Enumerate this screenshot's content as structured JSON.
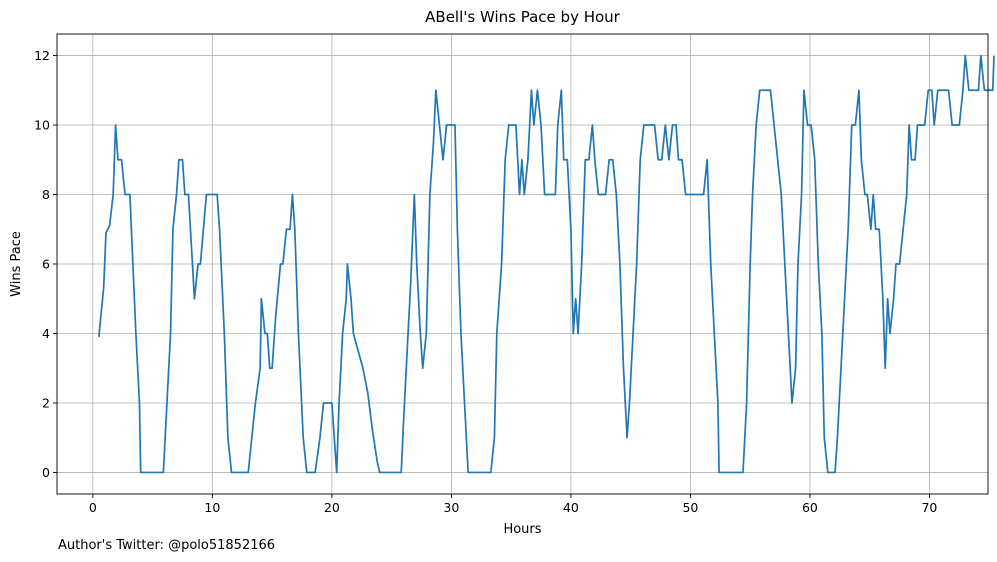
{
  "chart_data": {
    "type": "line",
    "title": "ABell's Wins Pace by Hour",
    "xlabel": "Hours",
    "ylabel": "Wins Pace",
    "xlim": [
      -3.0,
      74.9
    ],
    "ylim": [
      -0.62,
      12.62
    ],
    "xticks": [
      0,
      10,
      20,
      30,
      40,
      50,
      60,
      70
    ],
    "yticks": [
      0,
      2,
      4,
      6,
      8,
      10,
      12
    ],
    "grid": true,
    "series": [
      {
        "color": "#1f77b4",
        "points": [
          [
            0.5,
            3.9
          ],
          [
            0.9,
            5.3
          ],
          [
            1.1,
            6.9
          ],
          [
            1.4,
            7.1
          ],
          [
            1.6,
            7.7
          ],
          [
            1.7,
            8.0
          ],
          [
            1.8,
            9.0
          ],
          [
            1.9,
            10.0
          ],
          [
            2.1,
            9.0
          ],
          [
            2.4,
            9.0
          ],
          [
            2.6,
            8.3
          ],
          [
            2.7,
            8.0
          ],
          [
            3.0,
            8.0
          ],
          [
            3.1,
            8.0
          ],
          [
            3.6,
            4.0
          ],
          [
            3.9,
            2.0
          ],
          [
            4.0,
            0.0
          ],
          [
            4.5,
            0.0
          ],
          [
            5.0,
            0.0
          ],
          [
            5.5,
            0.0
          ],
          [
            5.9,
            0.0
          ],
          [
            6.2,
            2.0
          ],
          [
            6.5,
            4.0
          ],
          [
            6.7,
            7.0
          ],
          [
            7.0,
            8.0
          ],
          [
            7.2,
            9.0
          ],
          [
            7.5,
            9.0
          ],
          [
            7.7,
            8.0
          ],
          [
            8.0,
            8.0
          ],
          [
            8.5,
            5.0
          ],
          [
            8.8,
            6.0
          ],
          [
            9.0,
            6.0
          ],
          [
            9.5,
            8.0
          ],
          [
            9.9,
            8.0
          ],
          [
            10.2,
            8.0
          ],
          [
            10.4,
            8.0
          ],
          [
            10.6,
            7.0
          ],
          [
            11.0,
            4.0
          ],
          [
            11.3,
            1.0
          ],
          [
            11.6,
            0.0
          ],
          [
            12.0,
            0.0
          ],
          [
            12.5,
            0.0
          ],
          [
            13.0,
            0.0
          ],
          [
            13.3,
            1.0
          ],
          [
            13.6,
            2.0
          ],
          [
            14.0,
            3.0
          ],
          [
            14.1,
            5.0
          ],
          [
            14.4,
            4.0
          ],
          [
            14.6,
            4.0
          ],
          [
            14.8,
            3.0
          ],
          [
            15.0,
            3.0
          ],
          [
            15.3,
            4.5
          ],
          [
            15.7,
            6.0
          ],
          [
            15.9,
            6.0
          ],
          [
            16.2,
            7.0
          ],
          [
            16.5,
            7.0
          ],
          [
            16.7,
            8.0
          ],
          [
            16.9,
            7.0
          ],
          [
            17.2,
            4.0
          ],
          [
            17.6,
            1.0
          ],
          [
            17.9,
            0.0
          ],
          [
            18.3,
            0.0
          ],
          [
            18.6,
            0.0
          ],
          [
            19.0,
            1.0
          ],
          [
            19.3,
            2.0
          ],
          [
            19.7,
            2.0
          ],
          [
            20.0,
            2.0
          ],
          [
            20.4,
            0.0
          ],
          [
            20.6,
            2.0
          ],
          [
            20.9,
            4.0
          ],
          [
            21.2,
            5.0
          ],
          [
            21.3,
            6.0
          ],
          [
            21.6,
            5.0
          ],
          [
            21.8,
            4.0
          ],
          [
            22.2,
            3.5
          ],
          [
            22.6,
            3.0
          ],
          [
            23.0,
            2.3
          ],
          [
            23.4,
            1.2
          ],
          [
            23.8,
            0.3
          ],
          [
            24.0,
            0.0
          ],
          [
            24.5,
            0.0
          ],
          [
            25.0,
            0.0
          ],
          [
            25.5,
            0.0
          ],
          [
            25.8,
            0.0
          ],
          [
            26.0,
            1.5
          ],
          [
            26.3,
            3.5
          ],
          [
            26.6,
            5.5
          ],
          [
            26.9,
            8.0
          ],
          [
            27.1,
            6.0
          ],
          [
            27.4,
            4.0
          ],
          [
            27.6,
            3.0
          ],
          [
            27.9,
            4.0
          ],
          [
            28.2,
            8.0
          ],
          [
            28.5,
            9.5
          ],
          [
            28.7,
            11.0
          ],
          [
            29.0,
            10.0
          ],
          [
            29.3,
            9.0
          ],
          [
            29.6,
            10.0
          ],
          [
            29.9,
            10.0
          ],
          [
            30.3,
            10.0
          ],
          [
            30.5,
            7.0
          ],
          [
            30.8,
            4.0
          ],
          [
            31.1,
            2.0
          ],
          [
            31.4,
            0.0
          ],
          [
            32.0,
            0.0
          ],
          [
            33.0,
            0.0
          ],
          [
            33.3,
            0.0
          ],
          [
            33.6,
            1.0
          ],
          [
            33.8,
            4.0
          ],
          [
            34.2,
            6.0
          ],
          [
            34.5,
            9.0
          ],
          [
            34.8,
            10.0
          ],
          [
            35.1,
            10.0
          ],
          [
            35.4,
            10.0
          ],
          [
            35.7,
            8.0
          ],
          [
            35.9,
            9.0
          ],
          [
            36.1,
            8.0
          ],
          [
            36.4,
            9.0
          ],
          [
            36.7,
            11.0
          ],
          [
            36.9,
            10.0
          ],
          [
            37.2,
            11.0
          ],
          [
            37.5,
            10.0
          ],
          [
            37.8,
            8.0
          ],
          [
            38.1,
            8.0
          ],
          [
            38.4,
            8.0
          ],
          [
            38.7,
            8.0
          ],
          [
            38.9,
            10.0
          ],
          [
            39.2,
            11.0
          ],
          [
            39.4,
            9.0
          ],
          [
            39.7,
            9.0
          ],
          [
            40.0,
            7.0
          ],
          [
            40.2,
            4.0
          ],
          [
            40.4,
            5.0
          ],
          [
            40.6,
            4.0
          ],
          [
            40.9,
            6.0
          ],
          [
            41.2,
            9.0
          ],
          [
            41.5,
            9.0
          ],
          [
            41.8,
            10.0
          ],
          [
            42.0,
            9.0
          ],
          [
            42.3,
            8.0
          ],
          [
            42.6,
            8.0
          ],
          [
            42.9,
            8.0
          ],
          [
            43.2,
            9.0
          ],
          [
            43.5,
            9.0
          ],
          [
            43.8,
            8.0
          ],
          [
            44.1,
            6.0
          ],
          [
            44.4,
            3.0
          ],
          [
            44.7,
            1.0
          ],
          [
            44.9,
            2.0
          ],
          [
            45.2,
            4.0
          ],
          [
            45.5,
            6.0
          ],
          [
            45.8,
            9.0
          ],
          [
            46.1,
            10.0
          ],
          [
            46.4,
            10.0
          ],
          [
            46.7,
            10.0
          ],
          [
            47.0,
            10.0
          ],
          [
            47.3,
            9.0
          ],
          [
            47.6,
            9.0
          ],
          [
            47.9,
            10.0
          ],
          [
            48.2,
            9.0
          ],
          [
            48.5,
            10.0
          ],
          [
            48.8,
            10.0
          ],
          [
            49.0,
            9.0
          ],
          [
            49.3,
            9.0
          ],
          [
            49.6,
            8.0
          ],
          [
            49.9,
            8.0
          ],
          [
            50.2,
            8.0
          ],
          [
            50.5,
            8.0
          ],
          [
            50.8,
            8.0
          ],
          [
            51.1,
            8.0
          ],
          [
            51.4,
            9.0
          ],
          [
            51.7,
            6.0
          ],
          [
            52.0,
            4.0
          ],
          [
            52.3,
            2.0
          ],
          [
            52.4,
            0.0
          ],
          [
            53.0,
            0.0
          ],
          [
            53.5,
            0.0
          ],
          [
            54.0,
            0.0
          ],
          [
            54.4,
            0.0
          ],
          [
            54.7,
            2.0
          ],
          [
            55.0,
            6.0
          ],
          [
            55.2,
            8.0
          ],
          [
            55.5,
            10.0
          ],
          [
            55.8,
            11.0
          ],
          [
            56.1,
            11.0
          ],
          [
            56.4,
            11.0
          ],
          [
            56.7,
            11.0
          ],
          [
            57.0,
            10.0
          ],
          [
            57.3,
            9.0
          ],
          [
            57.6,
            8.0
          ],
          [
            57.9,
            6.0
          ],
          [
            58.2,
            4.0
          ],
          [
            58.5,
            2.0
          ],
          [
            58.8,
            3.0
          ],
          [
            59.0,
            6.0
          ],
          [
            59.3,
            8.0
          ],
          [
            59.5,
            11.0
          ],
          [
            59.8,
            10.0
          ],
          [
            60.1,
            10.0
          ],
          [
            60.4,
            9.0
          ],
          [
            60.7,
            6.0
          ],
          [
            61.0,
            4.0
          ],
          [
            61.2,
            1.0
          ],
          [
            61.5,
            0.0
          ],
          [
            61.8,
            0.0
          ],
          [
            62.1,
            0.0
          ],
          [
            62.3,
            1.0
          ],
          [
            62.6,
            3.0
          ],
          [
            62.9,
            5.0
          ],
          [
            63.2,
            7.0
          ],
          [
            63.5,
            10.0
          ],
          [
            63.8,
            10.0
          ],
          [
            64.1,
            11.0
          ],
          [
            64.3,
            9.0
          ],
          [
            64.6,
            8.0
          ],
          [
            64.8,
            8.0
          ],
          [
            65.1,
            7.0
          ],
          [
            65.3,
            8.0
          ],
          [
            65.5,
            7.0
          ],
          [
            65.8,
            7.0
          ],
          [
            66.1,
            5.0
          ],
          [
            66.3,
            3.0
          ],
          [
            66.5,
            5.0
          ],
          [
            66.7,
            4.0
          ],
          [
            67.0,
            5.0
          ],
          [
            67.2,
            6.0
          ],
          [
            67.5,
            6.0
          ],
          [
            67.8,
            7.0
          ],
          [
            68.1,
            8.0
          ],
          [
            68.3,
            10.0
          ],
          [
            68.5,
            9.0
          ],
          [
            68.8,
            9.0
          ],
          [
            69.0,
            10.0
          ],
          [
            69.3,
            10.0
          ],
          [
            69.6,
            10.0
          ],
          [
            69.9,
            11.0
          ],
          [
            70.2,
            11.0
          ],
          [
            70.4,
            10.0
          ],
          [
            70.7,
            11.0
          ],
          [
            71.0,
            11.0
          ],
          [
            71.3,
            11.0
          ],
          [
            71.6,
            11.0
          ],
          [
            71.9,
            10.0
          ],
          [
            72.2,
            10.0
          ],
          [
            72.5,
            10.0
          ],
          [
            72.8,
            11.0
          ],
          [
            73.0,
            12.0
          ],
          [
            73.3,
            11.0
          ],
          [
            73.6,
            11.0
          ],
          [
            73.9,
            11.0
          ],
          [
            74.1,
            11.0
          ],
          [
            74.3,
            12.0
          ],
          [
            74.6,
            11.0
          ],
          [
            74.8,
            11.0
          ],
          [
            75.1,
            11.0
          ],
          [
            75.3,
            11.0
          ],
          [
            75.4,
            12.0
          ]
        ]
      }
    ]
  },
  "footer": {
    "note": "Author's Twitter: @polo51852166"
  }
}
